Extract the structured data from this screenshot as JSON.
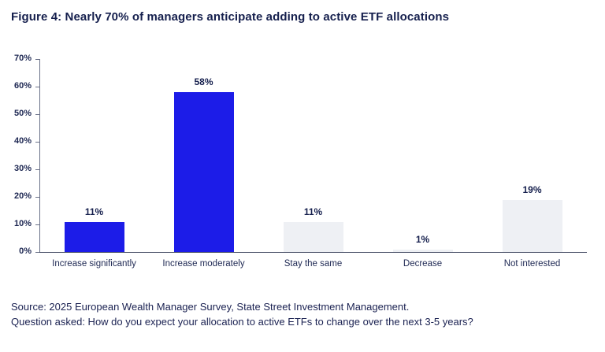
{
  "title": "Figure 4: Nearly 70% of managers anticipate adding to active ETF allocations",
  "footer": {
    "source": "Source: 2025 European Wealth Manager Survey, State Street Investment Management.",
    "question": "Question asked: How do you expect your allocation to active ETFs to change over the next 3-5 years?"
  },
  "colors": {
    "bar_blue": "#1C1CE8",
    "bar_gray": "#EEF0F4",
    "text_navy": "#151F4D",
    "axis_gray": "#6A7188"
  },
  "chart_data": {
    "type": "bar",
    "title": "Figure 4: Nearly 70% of managers anticipate adding to active ETF allocations",
    "categories": [
      "Increase significantly",
      "Increase moderately",
      "Stay the same",
      "Decrease",
      "Not interested"
    ],
    "values": [
      11,
      58,
      11,
      1,
      19
    ],
    "value_labels": [
      "11%",
      "58%",
      "11%",
      "1%",
      "19%"
    ],
    "bar_colors": [
      "#1C1CE8",
      "#1C1CE8",
      "#EEF0F4",
      "#EEF0F4",
      "#EEF0F4"
    ],
    "xlabel": "",
    "ylabel": "",
    "ylim": [
      0,
      70
    ],
    "ytick_interval": 10,
    "ytick_labels": [
      "0%",
      "10%",
      "20%",
      "30%",
      "40%",
      "50%",
      "60%",
      "70%"
    ],
    "grid": false,
    "legend_position": "none"
  }
}
